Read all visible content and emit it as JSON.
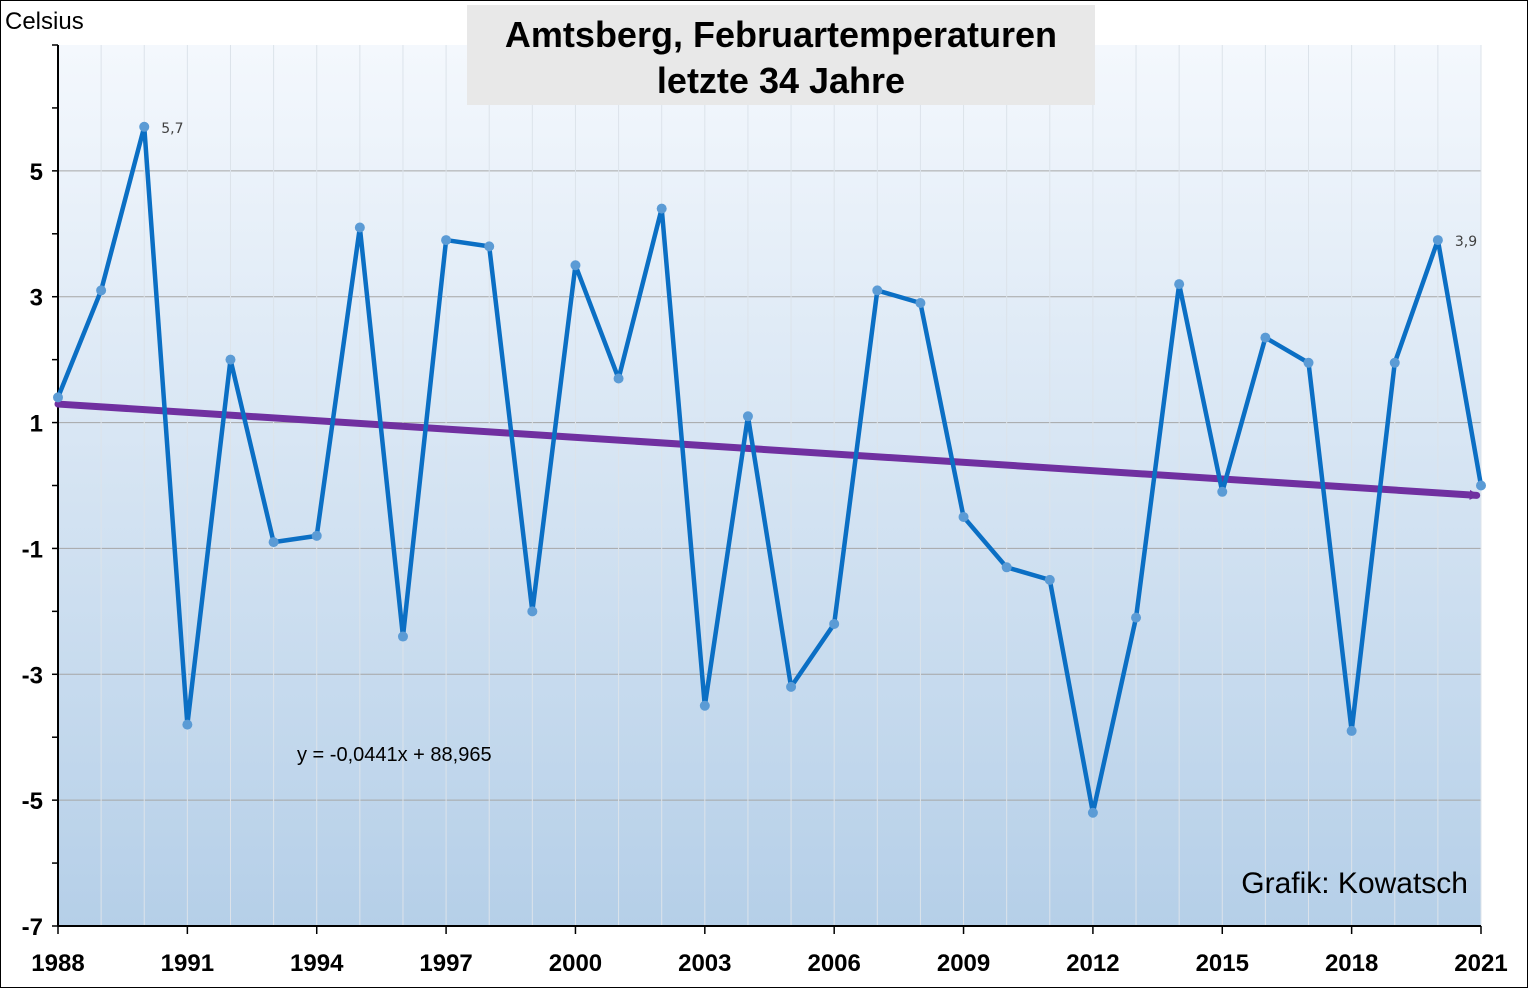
{
  "chart_data": {
    "type": "line",
    "title_lines": [
      "Amtsberg, Februartemperaturen",
      "letzte 34 Jahre"
    ],
    "ylabel": "Celsius",
    "xlim": [
      1988,
      2021
    ],
    "ylim": [
      -7,
      7
    ],
    "y_tick_labels": [
      -7,
      -5,
      -3,
      -1,
      1,
      3,
      5
    ],
    "x_tick_labels": [
      1988,
      1991,
      1994,
      1997,
      2000,
      2003,
      2006,
      2009,
      2012,
      2015,
      2018,
      2021
    ],
    "grid": true,
    "series": [
      {
        "color": "#0B6FC4",
        "x": [
          1988,
          1989,
          1990,
          1991,
          1992,
          1993,
          1994,
          1995,
          1996,
          1997,
          1998,
          1999,
          2000,
          2001,
          2002,
          2003,
          2004,
          2005,
          2006,
          2007,
          2008,
          2009,
          2010,
          2011,
          2012,
          2013,
          2014,
          2015,
          2016,
          2017,
          2018,
          2019,
          2020,
          2021
        ],
        "values": [
          1.4,
          3.1,
          5.7,
          -3.8,
          2.0,
          -0.9,
          -0.8,
          4.1,
          -2.4,
          3.9,
          3.8,
          -2.0,
          3.5,
          1.7,
          4.4,
          -3.5,
          1.1,
          -3.2,
          -2.2,
          3.1,
          2.9,
          -0.5,
          -1.3,
          -1.5,
          -5.2,
          -2.1,
          3.2,
          -0.1,
          2.35,
          1.95,
          -3.9,
          1.95,
          3.9,
          0.0
        ]
      }
    ],
    "trendline": {
      "color": "#7030A0",
      "slope": -0.0441,
      "intercept": 88.965,
      "equation_label": "y = -0,0441x + 88,965"
    },
    "data_labels": [
      {
        "x": 1990,
        "y": 5.7,
        "text": "5,7"
      },
      {
        "x": 2020,
        "y": 3.9,
        "text": "3,9"
      }
    ],
    "credit": "Grafik: Kowatsch",
    "colors": {
      "background_top": "#F4F8FD",
      "background_bottom": "#B5CFE8",
      "title_box": "#E8E8E8",
      "marker": "#5B9BD5"
    }
  }
}
